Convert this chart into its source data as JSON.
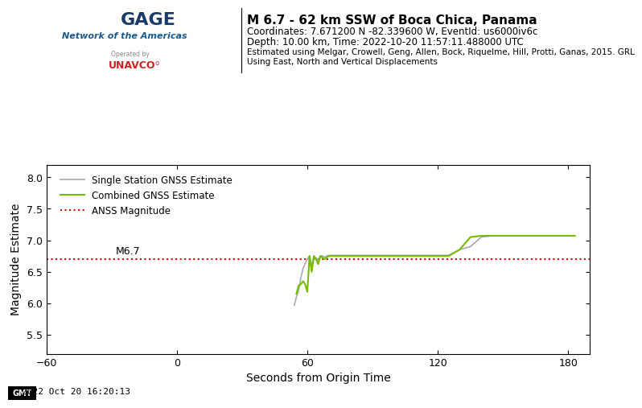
{
  "title_line1": "M 6.7 - 62 km SSW of Boca Chica, Panama",
  "title_line2": "Coordinates: 7.671200 N -82.339600 W, EventId: us6000iv6c",
  "title_line3": "Depth: 10.00 km, Time: 2022-10-20 11:57:11.488000 UTC",
  "title_line4": "Estimated using Melgar, Crowell, Geng, Allen, Bock, Riquelme, Hill, Protti, Ganas, 2015. GRL",
  "title_line5": "Using East, North and Vertical Displacements",
  "xlabel": "Seconds from Origin Time",
  "ylabel": "Magnitude Estimate",
  "anss_magnitude": 6.7,
  "anss_label": "M6.7",
  "xlim": [
    -30,
    190
  ],
  "ylim": [
    5.2,
    8.2
  ],
  "xticks": [
    -60,
    0,
    60,
    120,
    180
  ],
  "yticks": [
    5.5,
    6.0,
    6.5,
    7.0,
    7.5,
    8.0
  ],
  "timestamp": "2022 Oct 20 16:20:13",
  "legend_single": "Single Station GNSS Estimate",
  "legend_combined": "Combined GNSS Estimate",
  "legend_anss": "ANSS Magnitude",
  "single_color": "#aaaaaa",
  "combined_color": "#77bb00",
  "anss_color": "#dd0000",
  "single_x": [
    54,
    55,
    56,
    57,
    58,
    59,
    60,
    61,
    62,
    63,
    64,
    65,
    66,
    67,
    68,
    69,
    70,
    71,
    72,
    73,
    74,
    75,
    76,
    77,
    78,
    79,
    80,
    82,
    85,
    90,
    95,
    100,
    105,
    110,
    115,
    120,
    125,
    130,
    135,
    140,
    145,
    150,
    155,
    160,
    165,
    170,
    175,
    180,
    183
  ],
  "single_y": [
    5.97,
    6.1,
    6.2,
    6.4,
    6.55,
    6.63,
    6.7,
    6.75,
    6.6,
    6.72,
    6.72,
    6.68,
    6.75,
    6.75,
    6.73,
    6.75,
    6.76,
    6.76,
    6.76,
    6.76,
    6.76,
    6.76,
    6.76,
    6.76,
    6.76,
    6.76,
    6.76,
    6.76,
    6.76,
    6.76,
    6.76,
    6.76,
    6.76,
    6.76,
    6.76,
    6.76,
    6.76,
    6.85,
    6.9,
    7.05,
    7.07,
    7.07,
    7.07,
    7.07,
    7.07,
    7.07,
    7.07,
    7.07,
    7.07
  ],
  "combined_x": [
    55,
    56,
    57,
    58,
    59,
    60,
    61,
    62,
    63,
    64,
    65,
    66,
    67,
    68,
    69,
    70,
    71,
    72,
    73,
    74,
    75,
    76,
    77,
    78,
    79,
    80,
    82,
    85,
    90,
    95,
    100,
    105,
    110,
    115,
    120,
    125,
    130,
    135,
    140,
    145,
    150,
    155,
    160,
    165,
    170,
    175,
    180,
    183
  ],
  "combined_y": [
    6.15,
    6.28,
    6.3,
    6.35,
    6.3,
    6.18,
    6.75,
    6.5,
    6.75,
    6.7,
    6.62,
    6.75,
    6.72,
    6.7,
    6.73,
    6.75,
    6.75,
    6.75,
    6.75,
    6.75,
    6.75,
    6.75,
    6.75,
    6.75,
    6.75,
    6.75,
    6.75,
    6.75,
    6.75,
    6.75,
    6.75,
    6.75,
    6.75,
    6.75,
    6.75,
    6.75,
    6.85,
    7.05,
    7.07,
    7.07,
    7.07,
    7.07,
    7.07,
    7.07,
    7.07,
    7.07,
    7.07,
    7.07
  ],
  "background_color": "#ffffff"
}
